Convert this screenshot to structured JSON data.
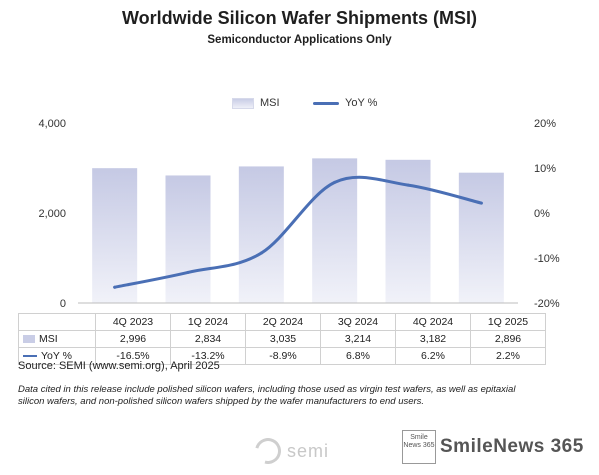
{
  "header": {
    "title": "Worldwide Silicon Wafer Shipments (MSI)",
    "subtitle": "Semiconductor Applications Only"
  },
  "legend": {
    "bar_label": "MSI",
    "line_label": "YoY %"
  },
  "chart_data": {
    "type": "bar",
    "title": "Worldwide Silicon Wafer Shipments (MSI)",
    "subtitle": "Semiconductor Applications Only",
    "categories": [
      "4Q 2023",
      "1Q 2024",
      "2Q 2024",
      "3Q 2024",
      "4Q 2024",
      "1Q 2025"
    ],
    "series": [
      {
        "name": "MSI",
        "type": "bar",
        "axis": "left",
        "values": [
          2996,
          2834,
          3035,
          3214,
          3182,
          2896
        ],
        "labels": [
          "2,996",
          "2,834",
          "3,035",
          "3,214",
          "3,182",
          "2,896"
        ]
      },
      {
        "name": "YoY %",
        "type": "line",
        "axis": "right",
        "values": [
          -16.5,
          -13.2,
          -8.9,
          6.8,
          6.2,
          2.2
        ],
        "labels": [
          "-16.5%",
          "-13.2%",
          "-8.9%",
          "6.8%",
          "6.2%",
          "2.2%"
        ]
      }
    ],
    "y_left": {
      "ylim": [
        0,
        4000
      ],
      "ticks": [
        0,
        2000,
        4000
      ],
      "tick_labels": [
        "0",
        "2,000",
        "4,000"
      ]
    },
    "y_right": {
      "ylim": [
        -20,
        20
      ],
      "ticks": [
        -20,
        -10,
        0,
        10,
        20
      ],
      "tick_labels": [
        "-20%",
        "-10%",
        "0%",
        "10%",
        "20%"
      ]
    },
    "legend_position": "top",
    "grid": false,
    "colors": {
      "bar": "#c9cde6",
      "line": "#4a6fb5"
    }
  },
  "source": "Source: SEMI (www.semi.org), April 2025",
  "note": "Data cited in this release include polished silicon wafers, including those used as virgin test wafers, as well as epitaxial silicon wafers, and non-polished silicon wafers shipped by the wafer manufacturers to end users.",
  "logo": {
    "text": "semi"
  },
  "watermark": {
    "box_text": "Smile News 365",
    "text": "SmileNews 365"
  }
}
